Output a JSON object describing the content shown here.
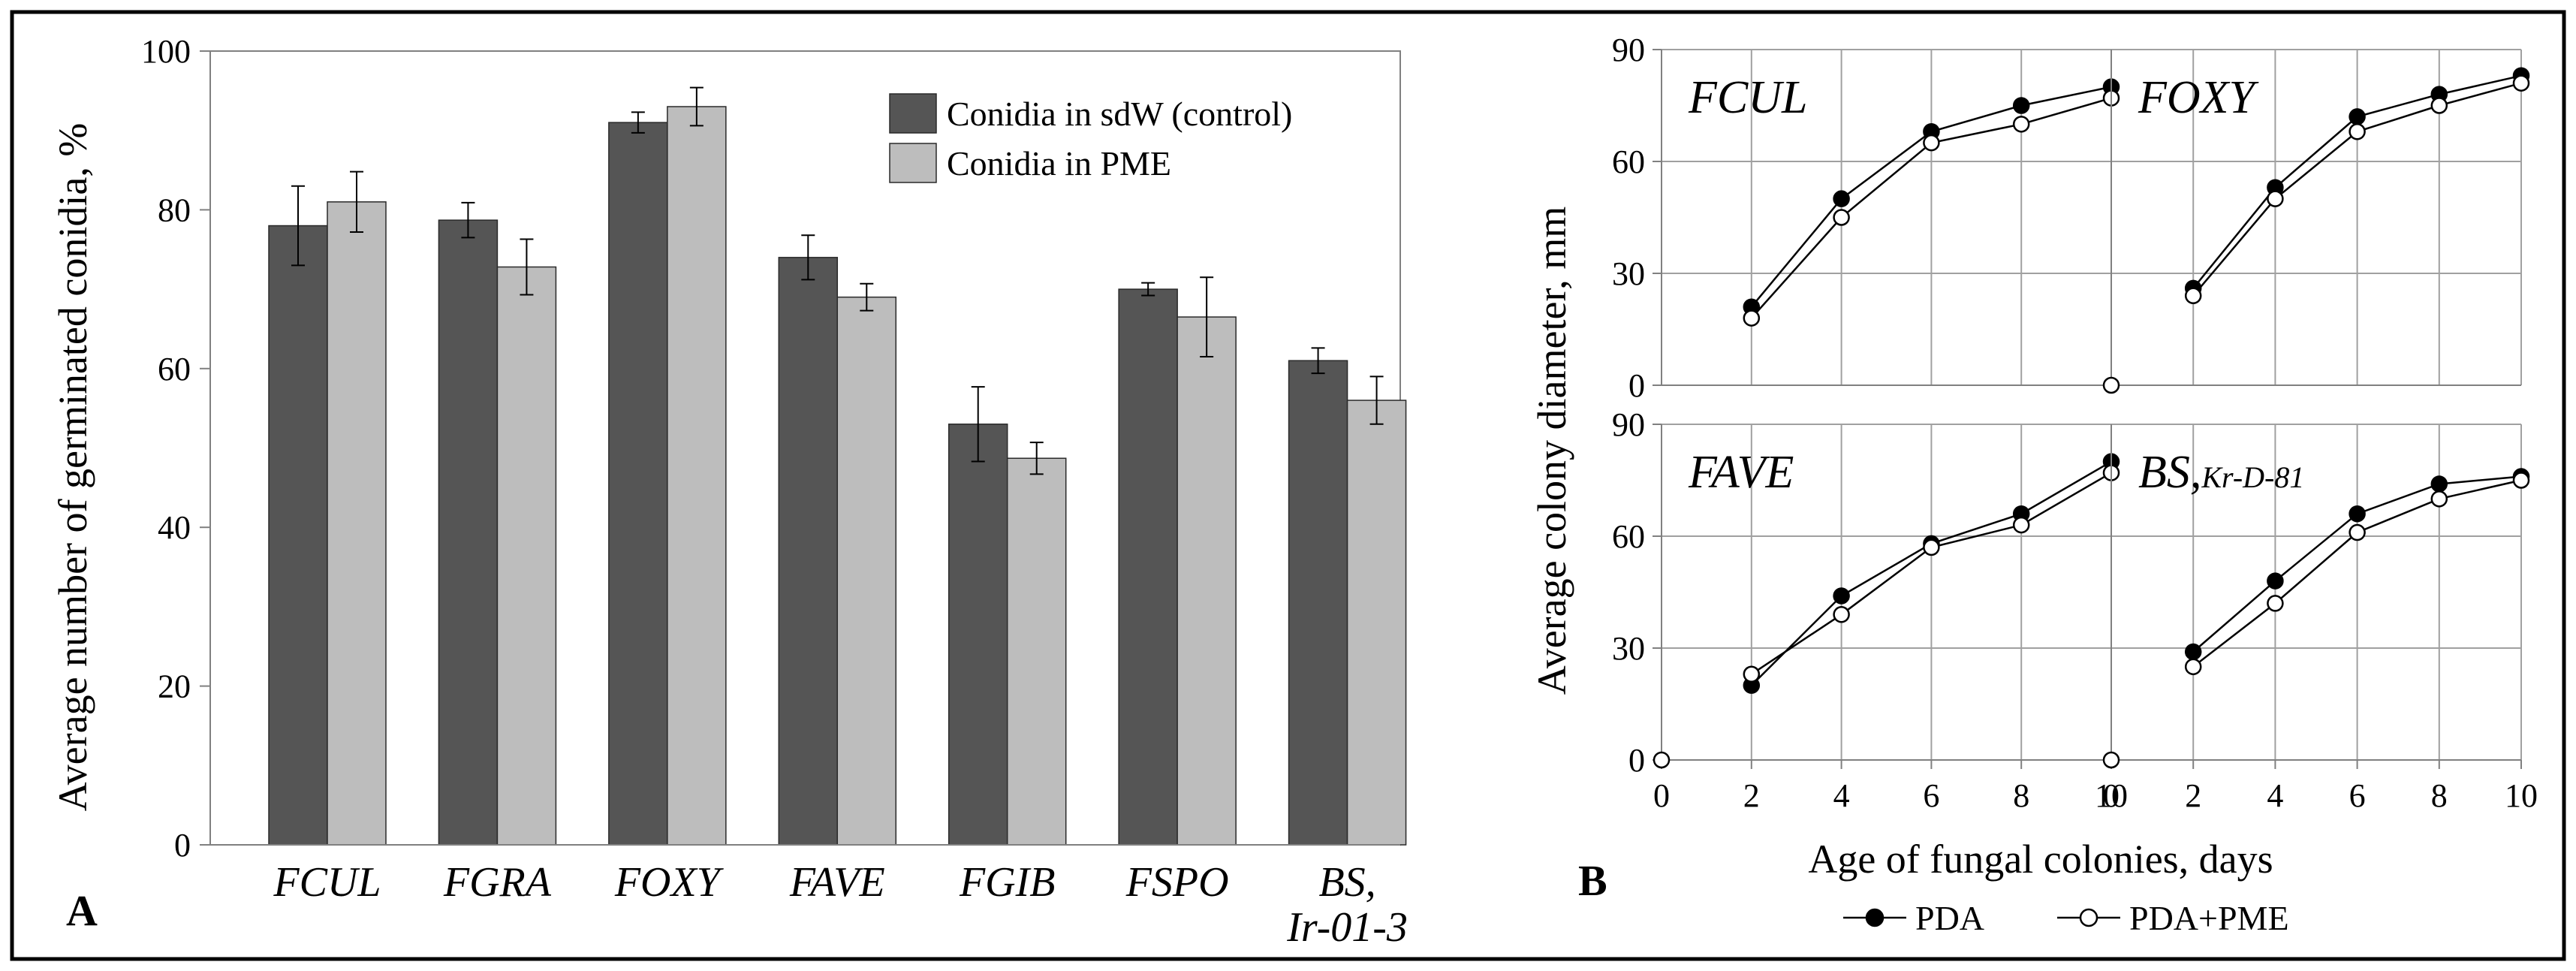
{
  "figure": {
    "panel_a_label": "A",
    "panel_b_label": "B"
  },
  "colors": {
    "dark_bar": "#555555",
    "light_bar": "#bdbdbd",
    "frame": "#000000"
  },
  "chart_data": [
    {
      "type": "bar",
      "panel": "A",
      "categories": [
        "FCUL",
        "FGRA",
        "FOXY",
        "FAVE",
        "FGIB",
        "FSPO",
        "BS,"
      ],
      "category_sublabels": [
        "",
        "",
        "",
        "",
        "",
        "",
        "Ir-01-3"
      ],
      "ylabel": "Average number of germinated conidia, %",
      "xlabel": "",
      "ylim": [
        0,
        100
      ],
      "yticks": [
        0,
        20,
        40,
        60,
        80,
        100
      ],
      "legend_position": "top-right",
      "grid": false,
      "series": [
        {
          "name": "Conidia in sdW (control)",
          "color": "#555555",
          "values": [
            78,
            78.7,
            91,
            74,
            53,
            70,
            61
          ],
          "errors": [
            5,
            2.2,
            1.3,
            2.8,
            4.7,
            0.8,
            1.6
          ]
        },
        {
          "name": "Conidia in PME",
          "color": "#bdbdbd",
          "values": [
            81,
            72.8,
            93,
            69,
            48.7,
            66.5,
            56
          ],
          "errors": [
            3.8,
            3.5,
            2.4,
            1.7,
            2,
            5,
            3
          ]
        }
      ]
    },
    {
      "type": "line",
      "panel": "B",
      "ylabel": "Average colony diameter, mm",
      "xlabel": "Age of fungal colonies, days",
      "xlim": [
        0,
        10
      ],
      "ylim": [
        0,
        90
      ],
      "xticks": [
        0,
        2,
        4,
        6,
        8,
        10
      ],
      "yticks": [
        0,
        30,
        60,
        90
      ],
      "grid": true,
      "legend_position": "bottom",
      "legend": [
        {
          "name": "PDA",
          "marker": "filled-circle"
        },
        {
          "name": "PDA+PME",
          "marker": "open-circle"
        }
      ],
      "subplots": [
        {
          "name": "FCUL",
          "sub": "",
          "x": [
            2,
            4,
            6,
            8,
            10
          ],
          "series": [
            {
              "name": "PDA",
              "values": [
                21,
                50,
                68,
                75,
                80
              ]
            },
            {
              "name": "PDA+PME",
              "values": [
                18,
                45,
                65,
                70,
                77
              ]
            }
          ]
        },
        {
          "name": "FOXY",
          "sub": "",
          "x": [
            0,
            2,
            4,
            6,
            8,
            10
          ],
          "series": [
            {
              "name": "PDA",
              "values": [
                null,
                26,
                53,
                72,
                78,
                83
              ]
            },
            {
              "name": "PDA+PME",
              "values": [
                0,
                24,
                50,
                68,
                75,
                81
              ]
            }
          ]
        },
        {
          "name": "FAVE",
          "sub": "",
          "x": [
            0,
            2,
            4,
            6,
            8,
            10
          ],
          "series": [
            {
              "name": "PDA",
              "values": [
                null,
                20,
                44,
                58,
                66,
                80
              ]
            },
            {
              "name": "PDA+PME",
              "values": [
                0,
                23,
                39,
                57,
                63,
                77
              ]
            }
          ]
        },
        {
          "name": "BS,",
          "sub": "Kr-D-81",
          "x": [
            0,
            2,
            4,
            6,
            8,
            10
          ],
          "series": [
            {
              "name": "PDA",
              "values": [
                null,
                29,
                48,
                66,
                74,
                76
              ]
            },
            {
              "name": "PDA+PME",
              "values": [
                0,
                25,
                42,
                61,
                70,
                75
              ]
            }
          ]
        }
      ]
    }
  ]
}
